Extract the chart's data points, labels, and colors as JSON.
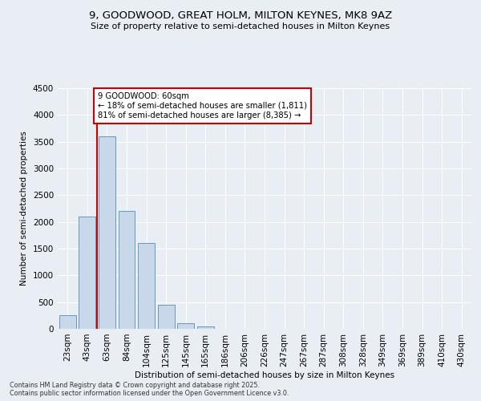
{
  "title_line1": "9, GOODWOOD, GREAT HOLM, MILTON KEYNES, MK8 9AZ",
  "title_line2": "Size of property relative to semi-detached houses in Milton Keynes",
  "xlabel": "Distribution of semi-detached houses by size in Milton Keynes",
  "ylabel": "Number of semi-detached properties",
  "categories": [
    "23sqm",
    "43sqm",
    "63sqm",
    "84sqm",
    "104sqm",
    "125sqm",
    "145sqm",
    "165sqm",
    "186sqm",
    "206sqm",
    "226sqm",
    "247sqm",
    "267sqm",
    "287sqm",
    "308sqm",
    "328sqm",
    "349sqm",
    "369sqm",
    "389sqm",
    "410sqm",
    "430sqm"
  ],
  "values": [
    250,
    2100,
    3600,
    2200,
    1600,
    450,
    100,
    50,
    0,
    0,
    0,
    0,
    0,
    0,
    0,
    0,
    0,
    0,
    0,
    0,
    0
  ],
  "bar_color": "#c8d8ea",
  "bar_edge_color": "#6699bb",
  "highlight_bar_index": 2,
  "highlight_edge_color": "#cc0000",
  "annotation_title": "9 GOODWOOD: 60sqm",
  "annotation_line1": "← 18% of semi-detached houses are smaller (1,811)",
  "annotation_line2": "81% of semi-detached houses are larger (8,385) →",
  "annotation_box_color": "#ffffff",
  "annotation_box_edge_color": "#cc0000",
  "vline_color": "#cc0000",
  "ylim": [
    0,
    4500
  ],
  "yticks": [
    0,
    500,
    1000,
    1500,
    2000,
    2500,
    3000,
    3500,
    4000,
    4500
  ],
  "background_color": "#e8eef4",
  "grid_color": "#ffffff",
  "footer_line1": "Contains HM Land Registry data © Crown copyright and database right 2025.",
  "footer_line2": "Contains public sector information licensed under the Open Government Licence v3.0."
}
